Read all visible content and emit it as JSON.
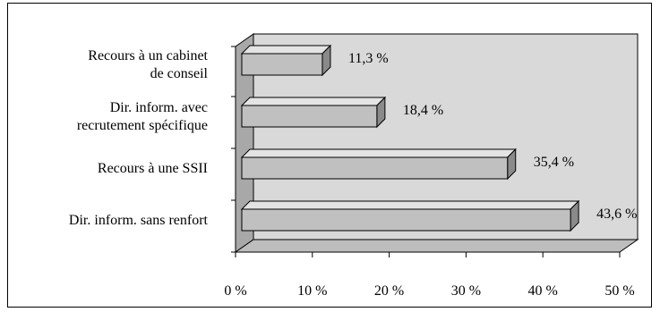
{
  "chart_data": {
    "type": "bar",
    "orientation": "horizontal",
    "three_d": true,
    "categories": [
      [
        "Recours à un cabinet",
        "de conseil"
      ],
      [
        "Dir. inform. avec",
        "recrutement spécifique"
      ],
      [
        "Recours à une SSII"
      ],
      [
        "Dir. inform. sans renfort"
      ]
    ],
    "values": [
      11.3,
      18.4,
      35.4,
      43.6
    ],
    "value_labels": [
      "11,3 %",
      "18,4 %",
      "35,4 %",
      "43,6 %"
    ],
    "xlim": [
      0,
      50
    ],
    "x_ticks": [
      0,
      10,
      20,
      30,
      40,
      50
    ],
    "x_tick_labels": [
      "0 %",
      "10 %",
      "20 %",
      "30 %",
      "40 %",
      "50 %"
    ],
    "title": "",
    "xlabel": "",
    "ylabel": "",
    "grid": false,
    "legend": "none",
    "colors": {
      "bar_front": "#c0c0c0",
      "bar_top": "#e4e4e4",
      "bar_side": "#8a8a8a",
      "plot_back": "#d9d9d9",
      "plot_floor": "#bdbdbd",
      "plot_side": "#a8a8a8"
    }
  }
}
